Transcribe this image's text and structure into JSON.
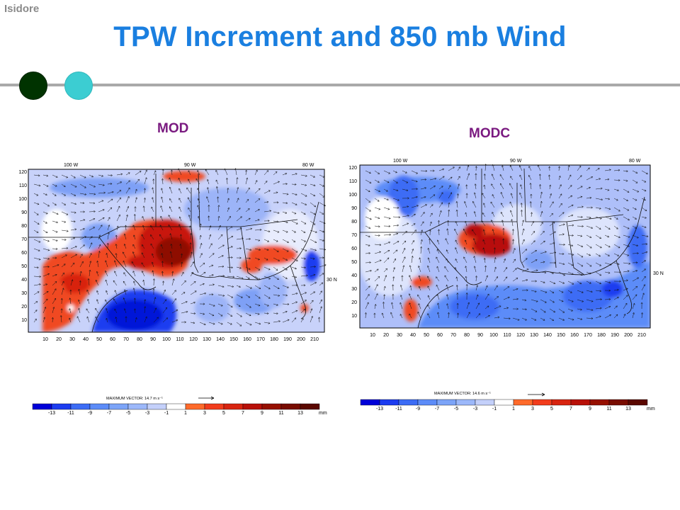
{
  "slide": {
    "event_label": "Isidore",
    "title": "TPW Increment and 850 mb Wind",
    "colors": {
      "title": "#1a7fe0",
      "event": "#8a8a8a",
      "dot_dark": "#003300",
      "dot_light": "#3ccdd2",
      "panel_label": "#7a1a80"
    }
  },
  "panels": [
    {
      "label": "MOD",
      "lon_labels": [
        "100 W",
        "90 W",
        "80 W"
      ],
      "lat_label": "30 N",
      "y_ticks": [
        "120",
        "110",
        "100",
        "90",
        "80",
        "70",
        "60",
        "50",
        "40",
        "30",
        "20",
        "10"
      ],
      "x_ticks": [
        "10",
        "20",
        "30",
        "40",
        "50",
        "60",
        "70",
        "80",
        "90",
        "100",
        "110",
        "120",
        "130",
        "140",
        "150",
        "160",
        "170",
        "180",
        "190",
        "200",
        "210"
      ],
      "max_vector_label": "MAXIMUM VECTOR: 14.7 m s⁻¹",
      "colorbar_ticks": [
        "-13",
        "-11",
        "-9",
        "-7",
        "-5",
        "-3",
        "-1",
        "1",
        "3",
        "5",
        "7",
        "9",
        "11",
        "13"
      ],
      "colorbar_unit": "mm"
    },
    {
      "label": "MODC",
      "lon_labels": [
        "100 W",
        "90 W",
        "80 W"
      ],
      "lat_label": "30 N",
      "y_ticks": [
        "120",
        "110",
        "100",
        "90",
        "80",
        "70",
        "60",
        "50",
        "40",
        "30",
        "20",
        "10"
      ],
      "x_ticks": [
        "10",
        "20",
        "30",
        "40",
        "50",
        "60",
        "70",
        "80",
        "90",
        "100",
        "110",
        "120",
        "130",
        "140",
        "150",
        "160",
        "170",
        "180",
        "190",
        "200",
        "210"
      ],
      "max_vector_label": "MAXIMUM VECTOR: 14.6 m s⁻¹",
      "colorbar_ticks": [
        "-13",
        "-11",
        "-9",
        "-7",
        "-5",
        "-3",
        "-1",
        "1",
        "3",
        "5",
        "7",
        "9",
        "11",
        "13"
      ],
      "colorbar_unit": "mm"
    }
  ],
  "colorbar_colors": [
    "#0000d8",
    "#1c3cf0",
    "#3c6cf5",
    "#5c8cf8",
    "#7ca4f8",
    "#9cb8fa",
    "#c4d0fa",
    "#ffffff",
    "#ff6a2a",
    "#f23c1c",
    "#d82410",
    "#b81008",
    "#961000",
    "#780c00",
    "#5a0800"
  ]
}
